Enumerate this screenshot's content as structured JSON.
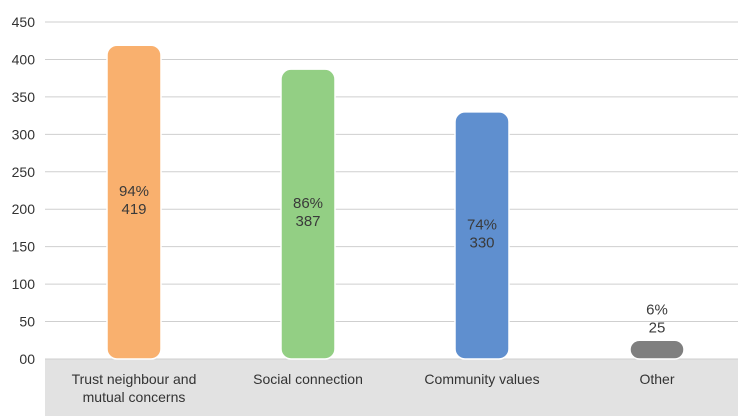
{
  "chart_data": {
    "type": "bar",
    "categories": [
      [
        "Trust neighbour and",
        "mutual concerns"
      ],
      [
        "Social connection"
      ],
      [
        "Community values"
      ],
      [
        "Other"
      ]
    ],
    "values": [
      419,
      387,
      330,
      25
    ],
    "percent_labels": [
      "94%",
      "86%",
      "74%",
      "6%"
    ],
    "count_labels": [
      "419",
      "387",
      "330",
      "25"
    ],
    "yticks": [
      "00",
      "50",
      "100",
      "150",
      "200",
      "250",
      "300",
      "350",
      "400",
      "450"
    ],
    "ylim": [
      0,
      450
    ],
    "grid": true,
    "legend": "none",
    "title": "",
    "xlabel": "",
    "ylabel": "",
    "colors": {
      "bars": [
        "#F9B06E",
        "#93CF84",
        "#5F8FCF",
        "#7F7F7F"
      ],
      "bar_stroke": "#ffffff",
      "grid": "#cfcfcf",
      "category_band": "#e2e2e2",
      "text": "#333333"
    }
  }
}
